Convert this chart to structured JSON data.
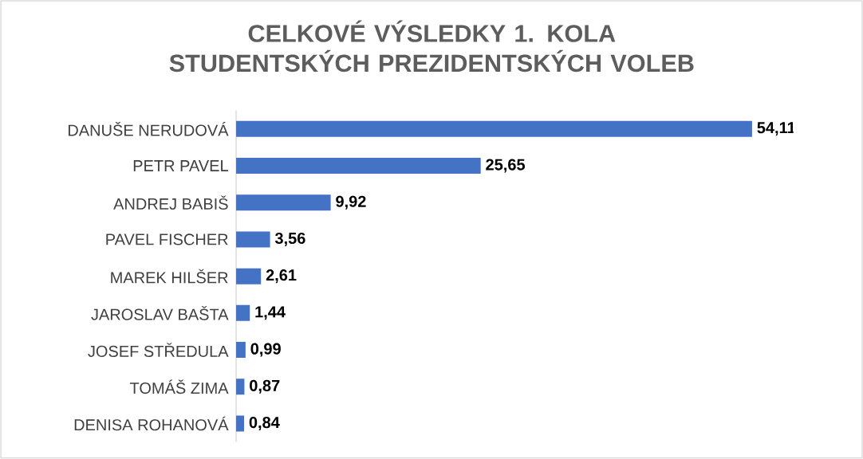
{
  "chart_data": {
    "type": "bar",
    "orientation": "horizontal",
    "title": "CELKOVÉ VÝSLEDKY 1. KOLA STUDENTSKÝCH PREZIDENTSKÝCH VOLEB",
    "categories": [
      "DANUŠE NERUDOVÁ",
      "PETR PAVEL",
      "ANDREJ BABIŠ",
      "PAVEL FISCHER",
      "MAREK HILŠER",
      "JAROSLAV BAŠTA",
      "JOSEF STŘEDULA",
      "TOMÁŠ ZIMA",
      "DENISA ROHANOVÁ"
    ],
    "values": [
      54.11,
      25.65,
      9.92,
      3.56,
      2.61,
      1.44,
      0.99,
      0.87,
      0.84
    ],
    "value_labels": [
      "54,11",
      "25,65",
      "9,92",
      "3,56",
      "2,61",
      "1,44",
      "0,99",
      "0,87",
      "0,84"
    ],
    "color": "#4472c4"
  }
}
